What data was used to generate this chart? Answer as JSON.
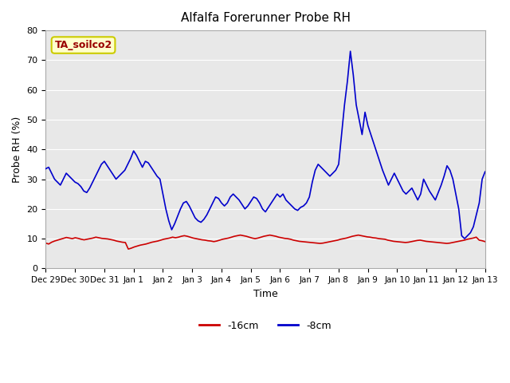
{
  "title": "Alfalfa Forerunner Probe RH",
  "xlabel": "Time",
  "ylabel": "Probe RH (%)",
  "ylim": [
    0,
    80
  ],
  "yticks": [
    0,
    10,
    20,
    30,
    40,
    50,
    60,
    70,
    80
  ],
  "bg_color": "#e8e8e8",
  "annotation_text": "TA_soilco2",
  "annotation_bg": "#ffffcc",
  "annotation_border": "#cccc00",
  "annotation_fg": "#990000",
  "legend_labels": [
    "-16cm",
    "-8cm"
  ],
  "line_color_red": "#cc0000",
  "line_color_blue": "#0000cc",
  "x_tick_labels": [
    "Dec 29",
    "Dec 30",
    "Dec 31",
    "Jan 1",
    "Jan 2",
    "Jan 3",
    "Jan 4",
    "Jan 5",
    "Jan 6",
    "Jan 7",
    "Jan 8",
    "Jan 9",
    "Jan 10",
    "Jan 11",
    "Jan 12",
    "Jan 13"
  ],
  "num_days": 15,
  "red_data": [
    8.5,
    8.2,
    8.8,
    9.2,
    9.5,
    9.8,
    10.1,
    10.4,
    10.2,
    10.0,
    10.3,
    10.1,
    9.8,
    9.6,
    9.8,
    10.0,
    10.2,
    10.5,
    10.3,
    10.1,
    10.0,
    9.9,
    9.7,
    9.5,
    9.2,
    9.0,
    8.8,
    8.7,
    6.5,
    6.8,
    7.2,
    7.5,
    7.8,
    8.0,
    8.2,
    8.5,
    8.8,
    9.0,
    9.2,
    9.5,
    9.8,
    10.0,
    10.2,
    10.5,
    10.3,
    10.5,
    10.8,
    11.0,
    10.8,
    10.5,
    10.2,
    10.0,
    9.8,
    9.6,
    9.5,
    9.3,
    9.2,
    9.0,
    9.2,
    9.5,
    9.8,
    10.0,
    10.2,
    10.5,
    10.8,
    11.0,
    11.2,
    11.0,
    10.8,
    10.5,
    10.2,
    10.0,
    10.2,
    10.5,
    10.8,
    11.0,
    11.2,
    11.0,
    10.8,
    10.5,
    10.3,
    10.1,
    10.0,
    9.8,
    9.5,
    9.3,
    9.1,
    9.0,
    8.9,
    8.8,
    8.7,
    8.6,
    8.5,
    8.4,
    8.5,
    8.7,
    8.9,
    9.1,
    9.3,
    9.5,
    9.8,
    10.0,
    10.2,
    10.5,
    10.8,
    11.0,
    11.2,
    11.0,
    10.8,
    10.6,
    10.5,
    10.3,
    10.2,
    10.0,
    9.9,
    9.8,
    9.5,
    9.3,
    9.1,
    9.0,
    8.9,
    8.8,
    8.7,
    8.8,
    9.0,
    9.2,
    9.4,
    9.5,
    9.3,
    9.1,
    9.0,
    8.9,
    8.8,
    8.7,
    8.6,
    8.5,
    8.4,
    8.5,
    8.7,
    8.9,
    9.1,
    9.3,
    9.5,
    9.8,
    10.0,
    10.2,
    10.5,
    9.5,
    9.3,
    9.0
  ],
  "blue_data": [
    33.5,
    34.0,
    32.0,
    30.0,
    29.0,
    28.0,
    30.0,
    32.0,
    31.0,
    30.0,
    29.0,
    28.5,
    27.5,
    26.0,
    25.5,
    27.0,
    29.0,
    31.0,
    33.0,
    35.0,
    36.0,
    34.5,
    33.0,
    31.5,
    30.0,
    31.0,
    32.0,
    33.0,
    35.0,
    37.0,
    39.5,
    38.0,
    36.0,
    34.0,
    36.0,
    35.5,
    34.0,
    32.5,
    31.0,
    30.0,
    25.0,
    20.0,
    16.0,
    13.0,
    15.0,
    17.5,
    20.0,
    22.0,
    22.5,
    21.0,
    19.0,
    17.0,
    16.0,
    15.5,
    16.5,
    18.0,
    20.0,
    22.0,
    24.0,
    23.5,
    22.0,
    21.0,
    22.0,
    24.0,
    25.0,
    24.0,
    23.0,
    21.5,
    20.0,
    21.0,
    22.5,
    24.0,
    23.5,
    22.0,
    20.0,
    19.0,
    20.5,
    22.0,
    23.5,
    25.0,
    24.0,
    25.0,
    23.0,
    22.0,
    21.0,
    20.0,
    19.5,
    20.5,
    21.0,
    22.0,
    24.0,
    29.0,
    33.0,
    35.0,
    34.0,
    33.0,
    32.0,
    31.0,
    32.0,
    33.0,
    35.0,
    45.0,
    55.0,
    63.0,
    73.0,
    65.0,
    55.0,
    50.0,
    45.0,
    52.5,
    48.0,
    45.0,
    42.0,
    39.0,
    36.0,
    33.0,
    30.5,
    28.0,
    30.0,
    32.0,
    30.0,
    28.0,
    26.0,
    25.0,
    26.0,
    27.0,
    25.0,
    23.0,
    25.0,
    30.0,
    28.0,
    26.0,
    24.5,
    23.0,
    25.5,
    28.0,
    31.0,
    34.5,
    33.0,
    30.0,
    25.0,
    20.0,
    11.0,
    10.0,
    11.0,
    12.0,
    14.0,
    18.0,
    22.0,
    30.0,
    32.5
  ]
}
